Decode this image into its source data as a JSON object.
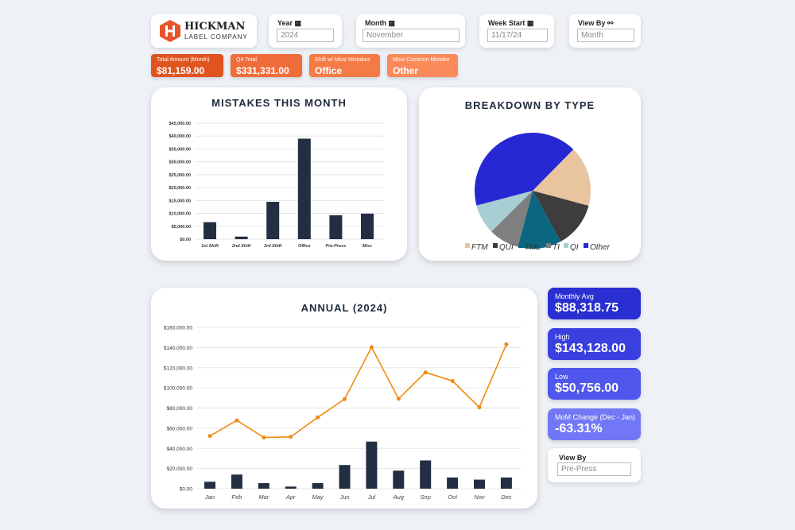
{
  "logo": {
    "name": "HICKMAN",
    "sub": "LABEL COMPANY",
    "color": "#e8542a"
  },
  "filters": [
    {
      "label": "Year",
      "icon": "calendar-icon",
      "value": "2024"
    },
    {
      "label": "Month",
      "icon": "calendar-icon",
      "value": "November"
    },
    {
      "label": "Week Start",
      "icon": "calendar-icon",
      "value": "11/17/24"
    },
    {
      "label": "View By",
      "icon": "binoculars-icon",
      "value": "Month"
    }
  ],
  "kpis": [
    {
      "label": "Total Amount (Month)",
      "value": "$81,159.00",
      "color": "#e0541f"
    },
    {
      "label": "Q4 Total",
      "value": "$331,331.00",
      "color": "#f06c3a"
    },
    {
      "label": "Shift w/ Most Mistakes",
      "value": "Office",
      "color": "#f47b45"
    },
    {
      "label": "Most Common Mistake",
      "value": "Other",
      "color": "#fb8a5a"
    }
  ],
  "tiles": [
    {
      "label": "Monthly Avg",
      "value": "$88,318.75",
      "color": "#2a2fd1"
    },
    {
      "label": "High",
      "value": "$143,128.00",
      "color": "#3a3fe0"
    },
    {
      "label": "Low",
      "value": "$50,756.00",
      "color": "#4f56ec"
    },
    {
      "label": "MoM Change (Dec - Jan)",
      "value": "-63.31%",
      "color": "#7278f5"
    }
  ],
  "view_by_bottom": {
    "label": "View By",
    "value": "Pre-Press"
  },
  "chart_data": [
    {
      "type": "bar",
      "title": "MISTAKES THIS MONTH",
      "categories": [
        "1st Shift",
        "2nd Shift",
        "3rd Shift",
        "Office",
        "Pre-Press",
        "Misc"
      ],
      "values": [
        6600,
        1000,
        14500,
        39000,
        9300,
        9900
      ],
      "ylim": [
        0,
        45000
      ],
      "yticks": [
        "$0.00",
        "$5,000.00",
        "$10,000.00",
        "$15,000.00",
        "$20,000.00",
        "$25,000.00",
        "$30,000.00",
        "$35,000.00",
        "$40,000.00",
        "$45,000.00"
      ],
      "grid": true,
      "color": "#222f42"
    },
    {
      "type": "pie",
      "title": "BREAKDOWN BY TYPE",
      "legend": "bottom",
      "slices": [
        {
          "name": "FTM",
          "value": 16.8,
          "color": "#e8c49f"
        },
        {
          "name": "QUI",
          "value": 12.8,
          "color": "#3d3d3d"
        },
        {
          "name": "TML",
          "value": 12.1,
          "color": "#0b6680"
        },
        {
          "name": "TI",
          "value": 8.5,
          "color": "#7f7f7f"
        },
        {
          "name": "QI",
          "value": 8.3,
          "color": "#a8cdd3"
        },
        {
          "name": "Other",
          "value": 41.5,
          "color": "#2628d4"
        }
      ]
    },
    {
      "type": "bar+line",
      "title": "ANNUAL (2024)",
      "categories": [
        "Jan",
        "Feb",
        "Mar",
        "Apr",
        "May",
        "Jun",
        "Jul",
        "Aug",
        "Sep",
        "Oct",
        "Nov",
        "Dec"
      ],
      "bar_values": [
        6900,
        14000,
        5500,
        2100,
        5500,
        23500,
        46700,
        17900,
        28000,
        11100,
        9000,
        11100
      ],
      "line_values": [
        52200,
        67800,
        50756,
        51400,
        70700,
        88900,
        140300,
        89200,
        115300,
        106900,
        80700,
        143128
      ],
      "ylim": [
        0,
        160000
      ],
      "yticks": [
        "$0.00",
        "$20,000.00",
        "$40,000.00",
        "$60,000.00",
        "$80,000.00",
        "$100,000.00",
        "$120,000.00",
        "$140,000.00",
        "$160,000.00"
      ],
      "grid": true,
      "bar_color": "#222f42",
      "line_color": "#f08a12"
    }
  ]
}
